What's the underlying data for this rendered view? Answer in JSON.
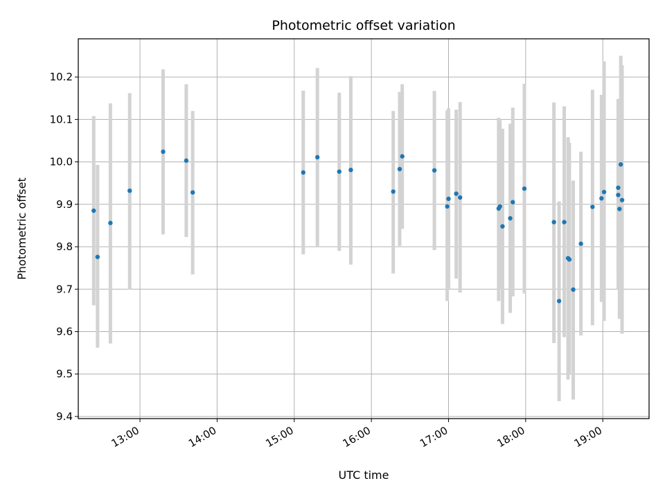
{
  "chart_data": {
    "type": "scatter",
    "title": "Photometric offset variation",
    "xlabel": "UTC time",
    "ylabel": "Photometric offset",
    "x_axis_type": "time",
    "xlim": [
      "12:12",
      "19:36"
    ],
    "ylim": [
      9.395,
      10.29
    ],
    "x_ticks": [
      "13:00",
      "14:00",
      "15:00",
      "16:00",
      "17:00",
      "18:00",
      "19:00"
    ],
    "y_ticks": [
      9.4,
      9.5,
      9.6,
      9.7,
      9.8,
      9.9,
      10.0,
      10.1,
      10.2
    ],
    "grid": true,
    "errorbar_color": "#d3d3d3",
    "point_color": "#1f77b4",
    "points": [
      {
        "t": "12:24",
        "y": 9.885,
        "lo": 9.662,
        "hi": 10.108
      },
      {
        "t": "12:27",
        "y": 9.776,
        "lo": 9.562,
        "hi": 9.993
      },
      {
        "t": "12:37",
        "y": 9.856,
        "lo": 9.572,
        "hi": 10.138
      },
      {
        "t": "12:52",
        "y": 9.932,
        "lo": 9.699,
        "hi": 10.162
      },
      {
        "t": "13:18",
        "y": 10.024,
        "lo": 9.829,
        "hi": 10.218
      },
      {
        "t": "13:36",
        "y": 10.003,
        "lo": 9.823,
        "hi": 10.183
      },
      {
        "t": "13:41",
        "y": 9.928,
        "lo": 9.735,
        "hi": 10.12
      },
      {
        "t": "15:07",
        "y": 9.975,
        "lo": 9.782,
        "hi": 10.168
      },
      {
        "t": "15:18",
        "y": 10.011,
        "lo": 9.8,
        "hi": 10.221
      },
      {
        "t": "15:35",
        "y": 9.977,
        "lo": 9.79,
        "hi": 10.163
      },
      {
        "t": "15:44",
        "y": 9.981,
        "lo": 9.758,
        "hi": 10.202
      },
      {
        "t": "16:17",
        "y": 9.93,
        "lo": 9.737,
        "hi": 10.12
      },
      {
        "t": "16:22",
        "y": 9.983,
        "lo": 9.802,
        "hi": 10.165
      },
      {
        "t": "16:24",
        "y": 10.013,
        "lo": 9.842,
        "hi": 10.183
      },
      {
        "t": "16:49",
        "y": 9.98,
        "lo": 9.792,
        "hi": 10.167
      },
      {
        "t": "16:59",
        "y": 9.895,
        "lo": 9.672,
        "hi": 10.121
      },
      {
        "t": "17:00",
        "y": 9.913,
        "lo": 9.7,
        "hi": 10.126
      },
      {
        "t": "17:06",
        "y": 9.925,
        "lo": 9.725,
        "hi": 10.123
      },
      {
        "t": "17:09",
        "y": 9.916,
        "lo": 9.692,
        "hi": 10.141
      },
      {
        "t": "17:39",
        "y": 9.89,
        "lo": 9.672,
        "hi": 10.104
      },
      {
        "t": "17:40",
        "y": 9.895,
        "lo": 9.7,
        "hi": 10.098
      },
      {
        "t": "17:42",
        "y": 9.848,
        "lo": 9.618,
        "hi": 10.078
      },
      {
        "t": "17:48",
        "y": 9.867,
        "lo": 9.644,
        "hi": 10.09
      },
      {
        "t": "17:50",
        "y": 9.905,
        "lo": 9.683,
        "hi": 10.128
      },
      {
        "t": "17:59",
        "y": 9.937,
        "lo": 9.69,
        "hi": 10.184
      },
      {
        "t": "18:22",
        "y": 9.858,
        "lo": 9.573,
        "hi": 10.14
      },
      {
        "t": "18:26",
        "y": 9.672,
        "lo": 9.436,
        "hi": 9.907
      },
      {
        "t": "18:30",
        "y": 9.858,
        "lo": 9.587,
        "hi": 10.131
      },
      {
        "t": "18:33",
        "y": 9.773,
        "lo": 9.487,
        "hi": 10.058
      },
      {
        "t": "18:34",
        "y": 9.77,
        "lo": 9.5,
        "hi": 10.045
      },
      {
        "t": "18:37",
        "y": 9.699,
        "lo": 9.44,
        "hi": 9.956
      },
      {
        "t": "18:43",
        "y": 9.807,
        "lo": 9.591,
        "hi": 10.024
      },
      {
        "t": "18:52",
        "y": 9.894,
        "lo": 9.615,
        "hi": 10.17
      },
      {
        "t": "18:59",
        "y": 9.914,
        "lo": 9.67,
        "hi": 10.158
      },
      {
        "t": "19:01",
        "y": 9.929,
        "lo": 9.625,
        "hi": 10.237
      },
      {
        "t": "19:12",
        "y": 9.939,
        "lo": 9.732,
        "hi": 10.147
      },
      {
        "t": "19:12",
        "y": 9.922,
        "lo": 9.7,
        "hi": 10.148
      },
      {
        "t": "19:13",
        "y": 9.889,
        "lo": 9.63,
        "hi": 10.149
      },
      {
        "t": "19:14",
        "y": 9.994,
        "lo": 9.74,
        "hi": 10.25
      },
      {
        "t": "19:15",
        "y": 9.91,
        "lo": 9.595,
        "hi": 10.228
      }
    ]
  }
}
